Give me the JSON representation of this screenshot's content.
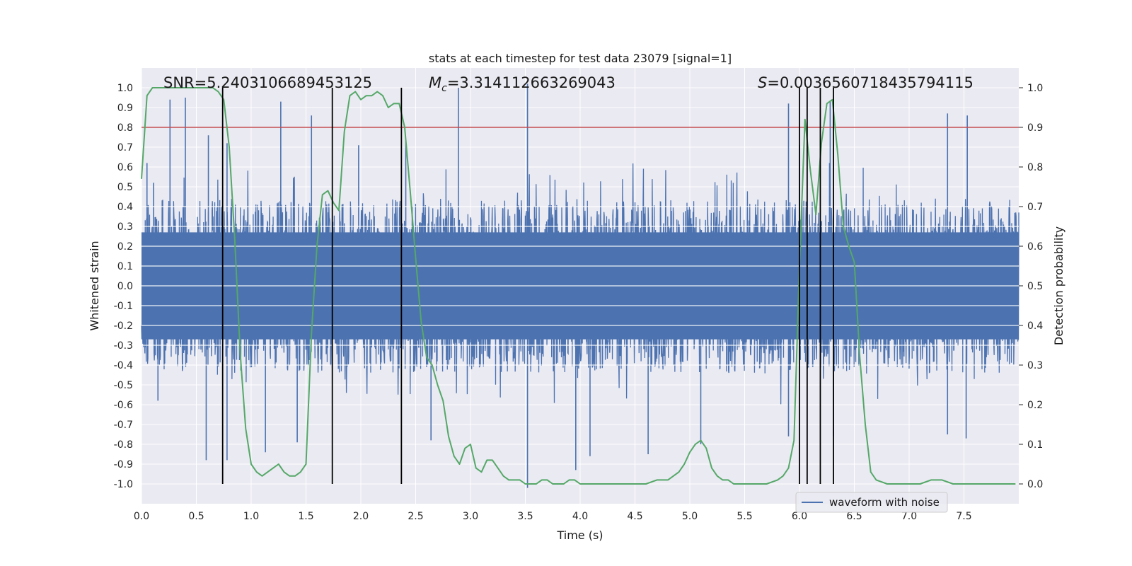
{
  "chart_data": {
    "type": "line",
    "title": "stats at each timestep for test data 23079 [signal=1]",
    "xlabel": "Time (s)",
    "ylabel": "Whitened strain",
    "ylabel_right": "Detection probability",
    "xlim": [
      0.0,
      8.0
    ],
    "ylim": [
      -1.1,
      1.1
    ],
    "ylim_right": [
      -0.05,
      1.05
    ],
    "x_ticks": [
      "0.0",
      "0.5",
      "1.0",
      "1.5",
      "2.0",
      "2.5",
      "3.0",
      "3.5",
      "4.0",
      "4.5",
      "5.0",
      "5.5",
      "6.0",
      "6.5",
      "7.0",
      "7.5"
    ],
    "y_ticks": [
      "1.0",
      "0.9",
      "0.8",
      "0.7",
      "0.6",
      "0.5",
      "0.4",
      "0.3",
      "0.2",
      "0.1",
      "0.0",
      "-0.1",
      "-0.2",
      "-0.3",
      "-0.4",
      "-0.5",
      "-0.6",
      "-0.7",
      "-0.8",
      "-0.9",
      "-1.0"
    ],
    "y_ticks_right": [
      "1.0",
      "0.9",
      "0.8",
      "0.7",
      "0.6",
      "0.5",
      "0.4",
      "0.3",
      "0.2",
      "0.1",
      "0.0"
    ],
    "grid": true,
    "legend_position": "lower-center",
    "legend": [
      {
        "label": "waveform with noise",
        "color": "#4c72b0"
      }
    ],
    "annotations": {
      "snr": "SNR=5.2403106689453125",
      "mc_symbol": "M",
      "mc_sub": "c",
      "mc_value": "=3.314112663269043",
      "s_symbol": "S",
      "s_value": "=0.0036560718435794115"
    },
    "threshold_right": 0.9,
    "vertical_lines_x": [
      0.74,
      1.74,
      2.37,
      6.0,
      6.07,
      6.19,
      6.31
    ],
    "series": [
      {
        "name": "waveform with noise",
        "axis": "left",
        "color": "#4c72b0",
        "description_type": "noise",
        "x_range": [
          0.0,
          8.0
        ],
        "typical_envelope": [
          -0.4,
          0.4
        ],
        "spikes": [
          {
            "x": 0.05,
            "y": 0.62
          },
          {
            "x": 0.11,
            "y": 0.52
          },
          {
            "x": 0.26,
            "y": 0.94
          },
          {
            "x": 0.4,
            "y": 0.95
          },
          {
            "x": 0.61,
            "y": 0.76
          },
          {
            "x": 0.78,
            "y": 0.72
          },
          {
            "x": 1.27,
            "y": 0.93
          },
          {
            "x": 1.55,
            "y": 0.86
          },
          {
            "x": 1.98,
            "y": 0.71
          },
          {
            "x": 2.41,
            "y": 0.73
          },
          {
            "x": 2.89,
            "y": 1.0
          },
          {
            "x": 3.52,
            "y": 1.02
          },
          {
            "x": 5.9,
            "y": 0.92
          },
          {
            "x": 6.0,
            "y": 0.71
          },
          {
            "x": 6.28,
            "y": 0.93
          },
          {
            "x": 7.35,
            "y": 0.87
          },
          {
            "x": 7.53,
            "y": 0.86
          },
          {
            "x": 0.15,
            "y": -0.58
          },
          {
            "x": 0.59,
            "y": -0.88
          },
          {
            "x": 0.78,
            "y": -0.88
          },
          {
            "x": 1.13,
            "y": -0.84
          },
          {
            "x": 1.42,
            "y": -0.79
          },
          {
            "x": 2.64,
            "y": -0.78
          },
          {
            "x": 3.52,
            "y": -1.02
          },
          {
            "x": 3.96,
            "y": -0.93
          },
          {
            "x": 4.09,
            "y": -0.86
          },
          {
            "x": 4.62,
            "y": -0.85
          },
          {
            "x": 5.1,
            "y": -0.8
          },
          {
            "x": 5.9,
            "y": -0.76
          },
          {
            "x": 6.31,
            "y": -0.76
          },
          {
            "x": 7.35,
            "y": -0.75
          },
          {
            "x": 7.52,
            "y": -0.77
          }
        ]
      },
      {
        "name": "detection probability",
        "axis": "right",
        "color": "#55a868",
        "x": [
          0.0,
          0.05,
          0.1,
          0.15,
          0.2,
          0.25,
          0.3,
          0.35,
          0.4,
          0.45,
          0.5,
          0.55,
          0.6,
          0.65,
          0.7,
          0.75,
          0.8,
          0.85,
          0.9,
          0.95,
          1.0,
          1.05,
          1.1,
          1.15,
          1.2,
          1.25,
          1.3,
          1.35,
          1.4,
          1.45,
          1.5,
          1.55,
          1.6,
          1.65,
          1.7,
          1.75,
          1.8,
          1.85,
          1.9,
          1.95,
          2.0,
          2.05,
          2.1,
          2.15,
          2.2,
          2.25,
          2.3,
          2.35,
          2.4,
          2.45,
          2.5,
          2.55,
          2.6,
          2.65,
          2.7,
          2.75,
          2.8,
          2.85,
          2.9,
          2.95,
          3.0,
          3.05,
          3.1,
          3.15,
          3.2,
          3.25,
          3.3,
          3.35,
          3.4,
          3.45,
          3.5,
          3.55,
          3.6,
          3.65,
          3.7,
          3.75,
          3.8,
          3.85,
          3.9,
          3.95,
          4.0,
          4.05,
          4.1,
          4.2,
          4.3,
          4.4,
          4.5,
          4.6,
          4.7,
          4.8,
          4.9,
          4.95,
          5.0,
          5.05,
          5.1,
          5.15,
          5.2,
          5.25,
          5.3,
          5.35,
          5.4,
          5.5,
          5.6,
          5.7,
          5.8,
          5.85,
          5.9,
          5.95,
          6.0,
          6.05,
          6.1,
          6.15,
          6.2,
          6.25,
          6.3,
          6.35,
          6.4,
          6.45,
          6.5,
          6.55,
          6.6,
          6.65,
          6.7,
          6.8,
          6.9,
          7.0,
          7.1,
          7.2,
          7.3,
          7.4,
          7.5,
          7.6,
          7.7,
          7.8,
          7.9,
          7.97
        ],
        "y": [
          0.77,
          0.98,
          1.0,
          1.0,
          1.0,
          1.0,
          1.0,
          1.0,
          1.0,
          1.0,
          1.0,
          1.0,
          1.0,
          1.0,
          0.99,
          0.97,
          0.85,
          0.62,
          0.33,
          0.14,
          0.05,
          0.03,
          0.02,
          0.03,
          0.04,
          0.05,
          0.03,
          0.02,
          0.02,
          0.03,
          0.05,
          0.38,
          0.6,
          0.73,
          0.74,
          0.71,
          0.69,
          0.89,
          0.98,
          0.99,
          0.97,
          0.98,
          0.98,
          0.99,
          0.98,
          0.95,
          0.96,
          0.96,
          0.9,
          0.74,
          0.57,
          0.41,
          0.32,
          0.3,
          0.25,
          0.21,
          0.12,
          0.07,
          0.05,
          0.09,
          0.1,
          0.04,
          0.03,
          0.06,
          0.06,
          0.04,
          0.02,
          0.01,
          0.01,
          0.01,
          0.0,
          0.0,
          0.0,
          0.01,
          0.01,
          0.0,
          0.0,
          0.0,
          0.01,
          0.01,
          0.0,
          0.0,
          0.0,
          0.0,
          0.0,
          0.0,
          0.0,
          0.0,
          0.01,
          0.01,
          0.03,
          0.05,
          0.08,
          0.1,
          0.11,
          0.09,
          0.04,
          0.02,
          0.01,
          0.01,
          0.0,
          0.0,
          0.0,
          0.0,
          0.01,
          0.02,
          0.04,
          0.11,
          0.55,
          0.92,
          0.79,
          0.68,
          0.86,
          0.96,
          0.97,
          0.83,
          0.65,
          0.6,
          0.56,
          0.32,
          0.15,
          0.03,
          0.01,
          0.0,
          0.0,
          0.0,
          0.0,
          0.01,
          0.01,
          0.0,
          0.0,
          0.0,
          0.0,
          0.0,
          0.0,
          0.0
        ]
      }
    ]
  }
}
